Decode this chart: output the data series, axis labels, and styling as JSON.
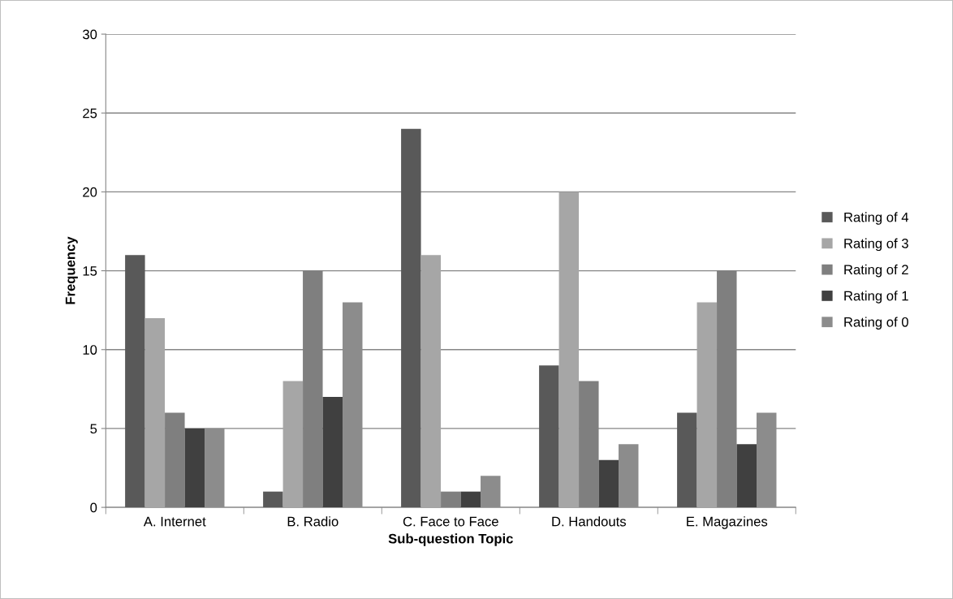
{
  "chart_data": {
    "type": "bar",
    "xlabel": "Sub-question Topic",
    "ylabel": "Frequency",
    "categories": [
      "A. Internet",
      "B. Radio",
      "C. Face to Face",
      "D. Handouts",
      "E. Magazines"
    ],
    "series": [
      {
        "name": "Rating of 4",
        "color": "#595959",
        "values": [
          16,
          1,
          24,
          9,
          6
        ]
      },
      {
        "name": "Rating of 3",
        "color": "#a6a6a6",
        "values": [
          12,
          8,
          16,
          20,
          13
        ]
      },
      {
        "name": "Rating of 2",
        "color": "#7f7f7f",
        "values": [
          6,
          15,
          1,
          8,
          15
        ]
      },
      {
        "name": "Rating of 1",
        "color": "#404040",
        "values": [
          5,
          7,
          1,
          3,
          4
        ]
      },
      {
        "name": "Rating of 0",
        "color": "#8c8c8c",
        "values": [
          5,
          13,
          2,
          4,
          6
        ]
      }
    ],
    "ylim": [
      0,
      30
    ],
    "yticks": [
      0,
      5,
      10,
      15,
      20,
      25,
      30
    ],
    "grid": "y",
    "legend": "right"
  }
}
